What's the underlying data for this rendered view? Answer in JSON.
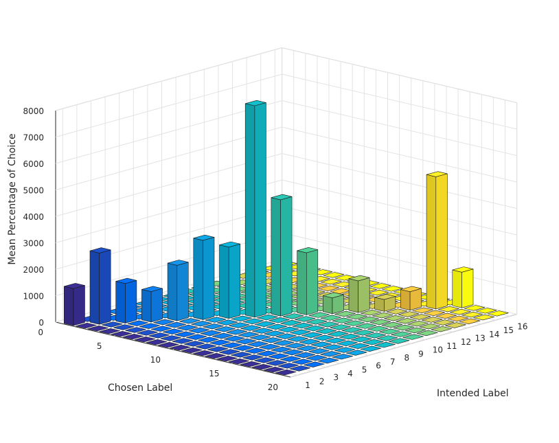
{
  "chart_data": {
    "type": "bar3d",
    "zlabel": "Mean Percentage of Choice",
    "xlabel": "Chosen Label",
    "ylabel": "Intended Label",
    "z_ticks": [
      "0",
      "1000",
      "2000",
      "3000",
      "4000",
      "5000",
      "6000",
      "7000",
      "8000"
    ],
    "x_ticks": [
      "0",
      "5",
      "10",
      "15",
      "20"
    ],
    "y_ticks": [
      "1",
      "2",
      "3",
      "4",
      "5",
      "6",
      "7",
      "8",
      "9",
      "10",
      "11",
      "12",
      "13",
      "14",
      "15",
      "16"
    ],
    "zlim": [
      0,
      8000
    ],
    "xlim": [
      0,
      20
    ],
    "ylim": [
      1,
      16
    ],
    "grid": true,
    "colormap": "parula",
    "diagonal_bars": [
      {
        "chosen": 1,
        "intended": 1,
        "value": 1400
      },
      {
        "chosen": 2,
        "intended": 2,
        "value": 2700
      },
      {
        "chosen": 3,
        "intended": 3,
        "value": 1500
      },
      {
        "chosen": 4,
        "intended": 4,
        "value": 1150
      },
      {
        "chosen": 5,
        "intended": 5,
        "value": 2100
      },
      {
        "chosen": 6,
        "intended": 6,
        "value": 3000
      },
      {
        "chosen": 7,
        "intended": 7,
        "value": 2700
      },
      {
        "chosen": 8,
        "intended": 8,
        "value": 8000
      },
      {
        "chosen": 9,
        "intended": 9,
        "value": 4400
      },
      {
        "chosen": 10,
        "intended": 10,
        "value": 2350
      },
      {
        "chosen": 11,
        "intended": 11,
        "value": 600
      },
      {
        "chosen": 12,
        "intended": 12,
        "value": 1200
      },
      {
        "chosen": 13,
        "intended": 13,
        "value": 450
      },
      {
        "chosen": 14,
        "intended": 14,
        "value": 700
      },
      {
        "chosen": 15,
        "intended": 15,
        "value": 5000
      },
      {
        "chosen": 16,
        "intended": 16,
        "value": 1350
      }
    ],
    "off_diagonal_value": 0
  }
}
